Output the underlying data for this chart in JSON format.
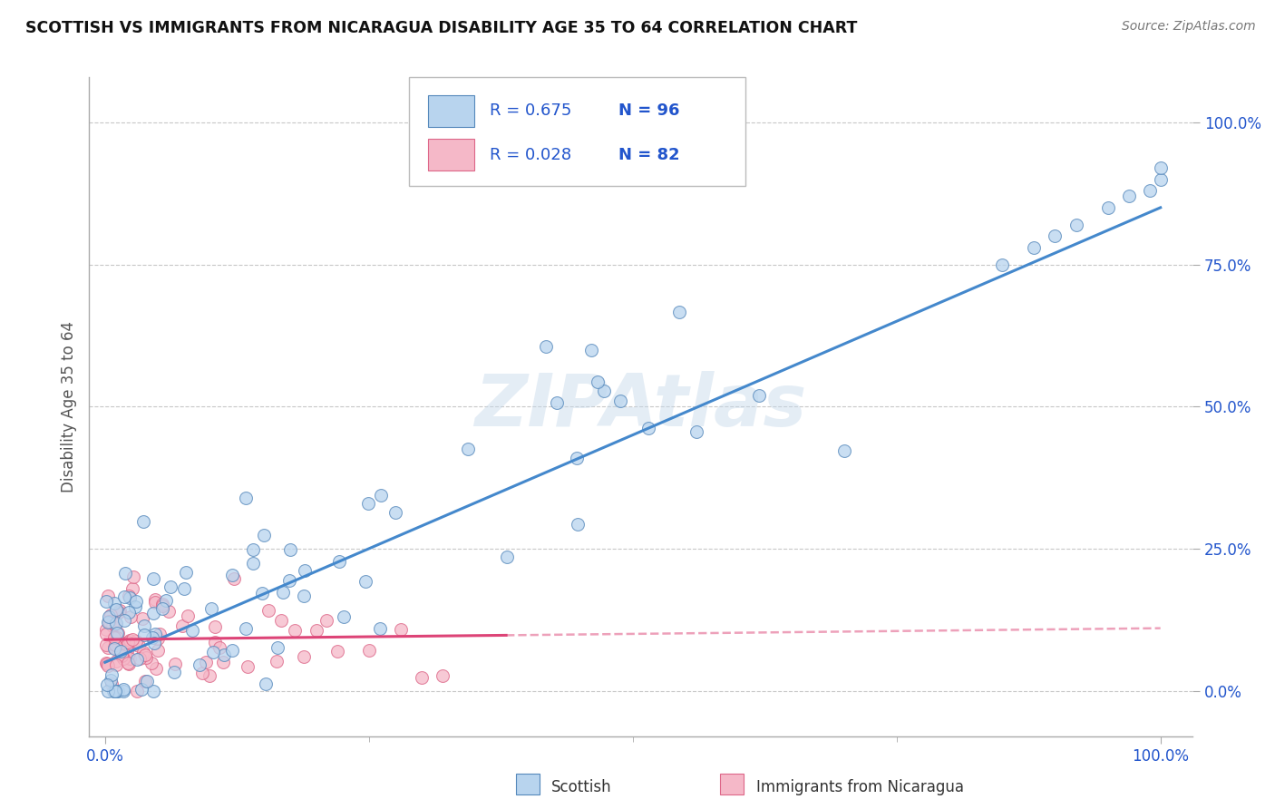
{
  "title": "SCOTTISH VS IMMIGRANTS FROM NICARAGUA DISABILITY AGE 35 TO 64 CORRELATION CHART",
  "source": "Source: ZipAtlas.com",
  "ylabel": "Disability Age 35 to 64",
  "watermark": "ZIPAtlas",
  "xlim": [
    -1.5,
    103.0
  ],
  "ylim": [
    -8.0,
    108.0
  ],
  "ytick_positions": [
    0,
    25,
    50,
    75,
    100
  ],
  "ytick_labels": [
    "0.0%",
    "25.0%",
    "50.0%",
    "75.0%",
    "100.0%"
  ],
  "xtick_positions": [
    0,
    100
  ],
  "xtick_labels": [
    "0.0%",
    "100.0%"
  ],
  "xtick_minor": [
    0,
    25,
    50,
    75,
    100
  ],
  "series1_name": "Scottish",
  "series1_color": "#b8d4ee",
  "series1_edge_color": "#5588bb",
  "series1_R": 0.675,
  "series1_N": 96,
  "series1_line_color": "#4488cc",
  "series2_name": "Immigrants from Nicaragua",
  "series2_color": "#f5b8c8",
  "series2_edge_color": "#dd6688",
  "series2_R": 0.028,
  "series2_N": 82,
  "series2_line_color": "#dd4477",
  "legend_color": "#2255cc",
  "background_color": "#ffffff",
  "grid_color": "#c8c8c8",
  "title_color": "#111111",
  "label_color": "#2255cc",
  "axis_color": "#aaaaaa",
  "scottish_line_x0": 0,
  "scottish_line_y0": 5,
  "scottish_line_x1": 100,
  "scottish_line_y1": 85,
  "nicaragua_line_x0": 0,
  "nicaragua_line_y0": 9,
  "nicaragua_line_x1": 100,
  "nicaragua_line_y1": 11,
  "nicaragua_solid_end": 38
}
